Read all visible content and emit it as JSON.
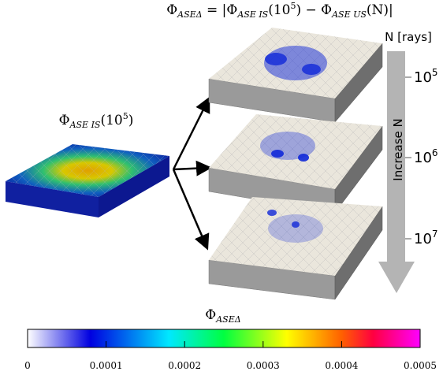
{
  "title_parts": [
    "Φ",
    "ASEΔ",
    " = |Φ",
    "ASE IS",
    "(10",
    "5",
    ") − Φ",
    "ASE US",
    "(N)|"
  ],
  "reference_label_parts": [
    "Φ",
    "ASE IS",
    "(10",
    "5",
    ")"
  ],
  "axis_label": "N [rays]",
  "arrow_label": "Increase N",
  "levels": [
    [
      "10",
      "5"
    ],
    [
      "10",
      "6"
    ],
    [
      "10",
      "7"
    ]
  ],
  "colorbar": {
    "label_parts": [
      "Φ",
      "ASEΔ"
    ],
    "ticks": [
      0,
      0.0001,
      0.0002,
      0.0003,
      0.0004,
      0.0005
    ]
  }
}
